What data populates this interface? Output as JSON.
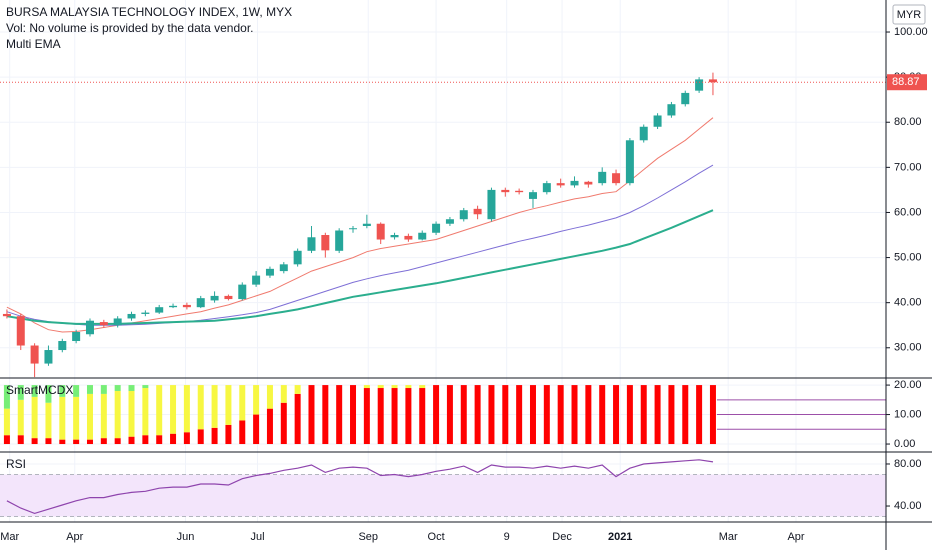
{
  "chart_data": [
    {
      "type": "candlestick",
      "title": "BURSA MALAYSIA TECHNOLOGY INDEX, 1W, MYX",
      "subtitle": "Vol: No volume is provided by the data vendor.",
      "annotation": "Multi EMA",
      "currency": "MYR",
      "up_color": "#26a69a",
      "down_color": "#ef5350",
      "open": [
        37.5,
        37,
        30.5,
        26.5,
        29.5,
        31.5,
        33,
        35.7,
        35,
        36.5,
        37.5,
        37.8,
        39,
        39.5,
        39,
        40.5,
        41.5,
        40.8,
        44,
        46,
        47,
        48.5,
        51.5,
        55,
        51.5,
        56.3,
        57,
        57.5,
        54.5,
        54.8,
        54,
        55.5,
        57.5,
        58.5,
        60.8,
        58.5,
        65,
        64.8,
        63,
        64.5,
        66.5,
        66,
        66.8,
        66.5,
        68.7,
        66.5,
        76,
        79,
        81.5,
        84,
        87,
        89.5
      ],
      "high": [
        38.5,
        37.5,
        31,
        30.5,
        32,
        34,
        36.5,
        36.2,
        37,
        38,
        38.3,
        39.5,
        39.8,
        40,
        41.5,
        42.5,
        41.8,
        44.5,
        47,
        48,
        49,
        52,
        57,
        55.5,
        56.5,
        57,
        59.5,
        57.8,
        55.5,
        55.3,
        56,
        58,
        59,
        61,
        61.5,
        65.5,
        65.5,
        65.3,
        65,
        67,
        67.5,
        68,
        67,
        70,
        69.5,
        76.5,
        79.5,
        82,
        84.5,
        87,
        90,
        91
      ],
      "low": [
        36.5,
        29.5,
        23.5,
        26,
        29,
        31,
        32.5,
        34.5,
        34.5,
        36,
        37,
        37.5,
        38.8,
        38.5,
        38.8,
        40,
        40.5,
        40.5,
        43.5,
        45.5,
        46.5,
        48,
        51,
        50,
        51,
        55.5,
        56.5,
        53,
        54,
        53.5,
        53.8,
        55,
        57,
        58,
        58.5,
        58,
        63.5,
        64,
        61,
        64,
        65.5,
        65.5,
        65.5,
        66,
        66,
        66,
        75.5,
        78.5,
        81,
        83.5,
        86.5,
        86
      ],
      "close": [
        37,
        30.5,
        26.5,
        29.5,
        31.5,
        33.5,
        36,
        35,
        36.5,
        37.5,
        37.8,
        39,
        39.3,
        39,
        41,
        41.5,
        40.8,
        44,
        46,
        47.5,
        48.5,
        51.5,
        54.5,
        51.6,
        56,
        56.5,
        57.5,
        54,
        55,
        54,
        55.5,
        57.5,
        58.5,
        60.5,
        59.6,
        65,
        64.5,
        64.5,
        64.5,
        66.5,
        66,
        67,
        66.2,
        69,
        66.5,
        76,
        79,
        81.5,
        84,
        86.5,
        89.5,
        88.87
      ],
      "series": [
        {
          "color": "#f07a6e",
          "width": 1,
          "values": [
            39,
            37.5,
            35.5,
            34,
            33.5,
            33.6,
            34,
            34.5,
            35,
            35.5,
            36,
            36.5,
            37,
            37.5,
            38,
            38.8,
            39.5,
            40.5,
            41.5,
            42.5,
            44,
            45.5,
            47,
            48,
            49,
            50,
            51.3,
            52,
            52.5,
            53,
            53.5,
            54,
            55,
            56,
            57,
            58,
            59,
            60,
            60.8,
            61.5,
            62.3,
            63,
            63.5,
            64.2,
            64.6,
            67,
            69.5,
            72,
            74,
            76,
            78.5,
            81
          ]
        },
        {
          "color": "#7e6fd6",
          "width": 1,
          "values": [
            38,
            37,
            36.3,
            35.8,
            35.4,
            35.2,
            35,
            35,
            35,
            35.1,
            35.2,
            35.4,
            35.6,
            35.8,
            36.1,
            36.5,
            36.9,
            37.3,
            37.8,
            38.5,
            39.5,
            40.5,
            41.5,
            42.5,
            43.5,
            44.5,
            45.3,
            46,
            46.6,
            47.2,
            48,
            48.8,
            49.6,
            50.4,
            51.2,
            52,
            52.8,
            53.6,
            54.3,
            55,
            55.8,
            56.5,
            57.2,
            58,
            58.8,
            60,
            61.5,
            63.2,
            65,
            66.8,
            68.7,
            70.5
          ]
        },
        {
          "color": "#2bae8e",
          "width": 2,
          "values": [
            37,
            36.5,
            36,
            35.7,
            35.5,
            35.3,
            35.3,
            35.3,
            35.3,
            35.4,
            35.5,
            35.6,
            35.7,
            35.8,
            35.9,
            36,
            36.3,
            36.6,
            37,
            37.5,
            38,
            38.5,
            39.2,
            39.9,
            40.6,
            41.3,
            41.8,
            42.3,
            42.8,
            43.3,
            43.8,
            44.3,
            44.9,
            45.5,
            46.1,
            46.7,
            47.3,
            47.9,
            48.5,
            49.1,
            49.7,
            50.3,
            50.9,
            51.5,
            52.2,
            53,
            54.2,
            55.4,
            56.6,
            57.9,
            59.2,
            60.5
          ]
        }
      ],
      "xlim": [
        -0.5,
        63.5
      ],
      "xticks": [
        {
          "value": 0.2,
          "label": "Mar"
        },
        {
          "value": 4.9,
          "label": "Apr"
        },
        {
          "value": 12.9,
          "label": "Jun"
        },
        {
          "value": 18.1,
          "label": "Jul"
        },
        {
          "value": 26.1,
          "label": "Sep"
        },
        {
          "value": 31,
          "label": "Oct"
        },
        {
          "value": 36.1,
          "label": "9"
        },
        {
          "value": 40.1,
          "label": "Dec"
        },
        {
          "value": 44.3,
          "label": "2021",
          "bold": true
        },
        {
          "value": 52.1,
          "label": "Mar"
        },
        {
          "value": 57,
          "label": "Apr"
        }
      ],
      "ylim": [
        23.3,
        107.1
      ],
      "yticks": [
        {
          "value": 30,
          "label": "30.00"
        },
        {
          "value": 40,
          "label": "40.00"
        },
        {
          "value": 50,
          "label": "50.00"
        },
        {
          "value": 60,
          "label": "60.00"
        },
        {
          "value": 70,
          "label": "70.00"
        },
        {
          "value": 80,
          "label": "80.00"
        },
        {
          "value": 90,
          "label": "90.00"
        },
        {
          "value": 100,
          "label": "100.00"
        }
      ],
      "grid": true
    },
    {
      "type": "stacked-bar",
      "title": "SmartMCDX",
      "series": [
        {
          "color": "#ff0000",
          "values": [
            3,
            3,
            2,
            2,
            1.5,
            1.5,
            1.5,
            2,
            2,
            2.5,
            3,
            3,
            3.5,
            4,
            5,
            5.5,
            6.5,
            8,
            10,
            12,
            14,
            17,
            20,
            20,
            20,
            20,
            19,
            19,
            19,
            19,
            19,
            20,
            20,
            20,
            20,
            20,
            20,
            20,
            20,
            20,
            20,
            20,
            20,
            20,
            20,
            20,
            20,
            20,
            20,
            20,
            20,
            20
          ]
        },
        {
          "color": "#f7f742",
          "values": [
            9,
            12,
            14,
            12,
            14.5,
            14.5,
            15.5,
            15,
            16,
            15.5,
            16,
            17,
            16.5,
            16,
            15,
            14.5,
            13.5,
            12,
            10,
            8,
            6,
            3,
            0,
            0,
            0,
            0,
            1,
            1,
            1,
            1,
            1,
            0,
            0,
            0,
            0,
            0,
            0,
            0,
            0,
            0,
            0,
            0,
            0,
            0,
            0,
            0,
            0,
            0,
            0,
            0,
            0,
            0
          ]
        },
        {
          "color": "#77ee77",
          "values": [
            8,
            5,
            4,
            6,
            4,
            4,
            3,
            3,
            2,
            2,
            1,
            0,
            0,
            0,
            0,
            0,
            0,
            0,
            0,
            0,
            0,
            0,
            0,
            0,
            0,
            0,
            0,
            0,
            0,
            0,
            0,
            0,
            0,
            0,
            0,
            0,
            0,
            0,
            0,
            0,
            0,
            0,
            0,
            0,
            0,
            0,
            0,
            0,
            0,
            0,
            0,
            0
          ]
        }
      ],
      "levels": [
        5,
        10,
        15
      ],
      "level_color": "#9c4fa8",
      "ylim": [
        -2.7,
        22.4
      ],
      "yticks": [
        {
          "value": 0,
          "label": "0.00"
        },
        {
          "value": 10,
          "label": "10.00"
        },
        {
          "value": 20,
          "label": "20.00"
        }
      ]
    },
    {
      "type": "line",
      "title": "RSI",
      "color": "#8e44ad",
      "values": [
        45,
        38,
        33,
        37,
        41,
        45,
        48,
        48,
        51,
        53,
        54,
        57,
        58,
        58,
        61,
        61,
        60,
        66,
        69,
        71,
        74,
        76,
        79,
        72,
        76,
        77,
        76,
        69,
        70,
        68,
        70,
        73,
        75,
        78,
        72,
        79,
        77,
        77,
        76,
        78,
        76,
        78,
        76,
        79,
        68,
        76,
        80,
        81,
        82,
        83,
        84,
        82
      ],
      "band": [
        30,
        70
      ],
      "band_color": "#f3e5fb",
      "ylim": [
        24.8,
        91.4
      ],
      "yticks": [
        {
          "value": 40,
          "label": "40.00"
        },
        {
          "value": 80,
          "label": "80.00"
        }
      ]
    }
  ]
}
